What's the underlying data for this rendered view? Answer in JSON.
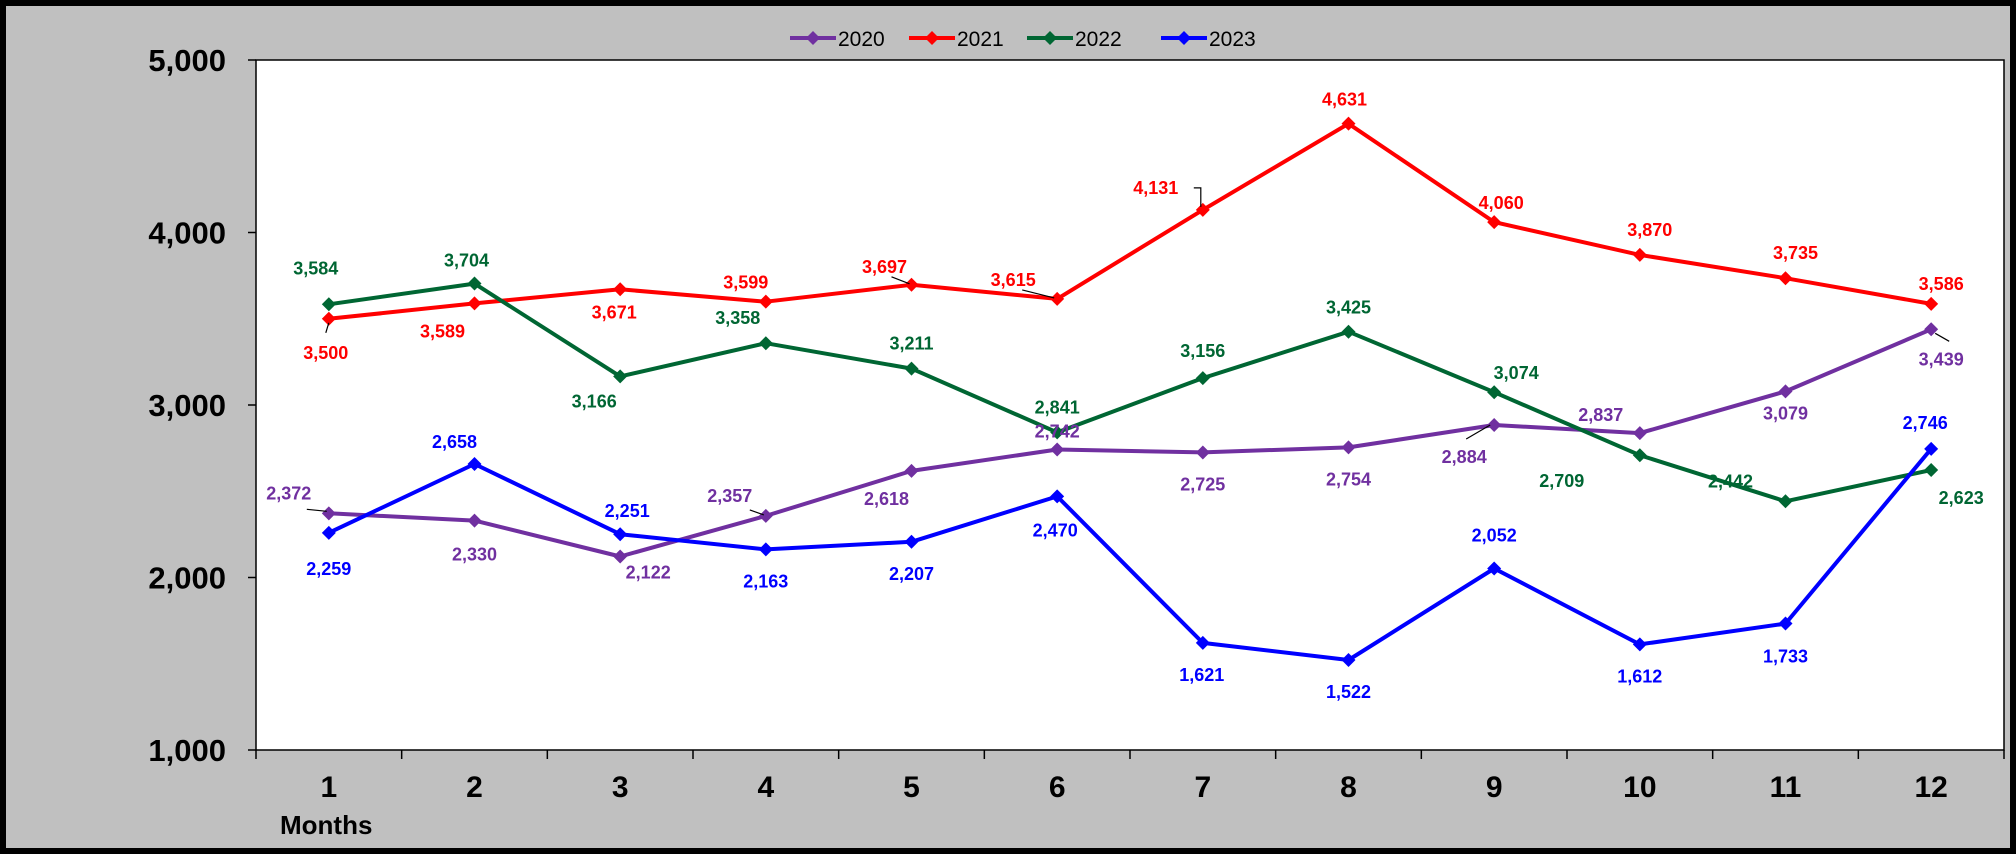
{
  "chart_data": {
    "type": "line",
    "title": "",
    "xlabel": "Months",
    "ylabel": "",
    "categories": [
      "1",
      "2",
      "3",
      "4",
      "5",
      "6",
      "7",
      "8",
      "9",
      "10",
      "11",
      "12"
    ],
    "ylim": [
      1000,
      5000
    ],
    "yticks": [
      1000,
      2000,
      3000,
      4000,
      5000
    ],
    "ytick_labels": [
      "1,000",
      "2,000",
      "3,000",
      "4,000",
      "5,000"
    ],
    "grid": false,
    "legend_position": "top",
    "series": [
      {
        "name": "2020",
        "color": "#7030A0",
        "values": [
          2372,
          2330,
          2122,
          2357,
          2618,
          2742,
          2725,
          2754,
          2884,
          2837,
          3079,
          3439
        ],
        "labels": [
          "2,372",
          "2,330",
          "2,122",
          "2,357",
          "2,618",
          "2,742",
          "2,725",
          "2,754",
          "2,884",
          "2,837",
          "3,079",
          "3,439"
        ]
      },
      {
        "name": "2021",
        "color": "#FF0000",
        "values": [
          3500,
          3589,
          3671,
          3599,
          3697,
          3615,
          4131,
          4631,
          4060,
          3870,
          3735,
          3586
        ],
        "labels": [
          "3,500",
          "3,589",
          "3,671",
          "3,599",
          "3,697",
          "3,615",
          "4,131",
          "4,631",
          "4,060",
          "3,870",
          "3,735",
          "3,586"
        ]
      },
      {
        "name": "2022",
        "color": "#006633",
        "values": [
          3584,
          3704,
          3166,
          3358,
          3211,
          2841,
          3156,
          3425,
          3074,
          2709,
          2442,
          2623
        ],
        "labels": [
          "3,584",
          "3,704",
          "3,166",
          "3,358",
          "3,211",
          "2,841",
          "3,156",
          "3,425",
          "3,074",
          "2,709",
          "2,442",
          "2,623"
        ]
      },
      {
        "name": "2023",
        "color": "#0000FF",
        "values": [
          2259,
          2658,
          2251,
          2163,
          2207,
          2470,
          1621,
          1522,
          2052,
          1612,
          1733,
          2746
        ],
        "labels": [
          "2,259",
          "2,658",
          "2,251",
          "2,163",
          "2,207",
          "2,470",
          "1,621",
          "1,522",
          "2,052",
          "1,612",
          "1,733",
          "2,746"
        ]
      }
    ]
  }
}
